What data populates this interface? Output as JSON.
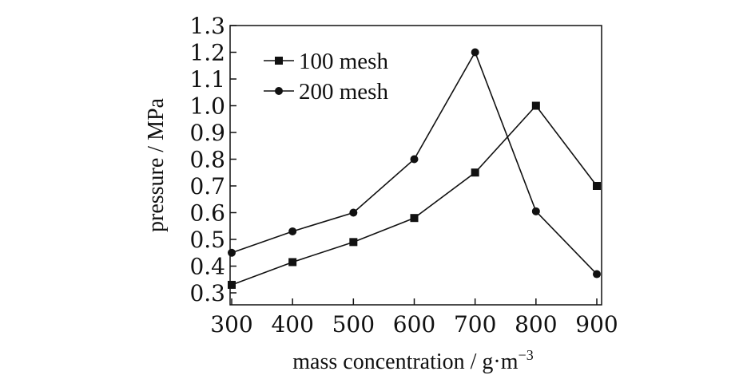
{
  "chart_data": {
    "type": "line",
    "title": "",
    "xlabel": "mass concentration / g·m",
    "xlabel_superscript": "−3",
    "ylabel": "pressure / MPa",
    "x": [
      300,
      400,
      500,
      600,
      700,
      800,
      900
    ],
    "x_tick_labels": [
      "300",
      "400",
      "500",
      "600",
      "700",
      "800",
      "900"
    ],
    "y_tick_labels": [
      "0.3",
      "0.4",
      "0.5",
      "0.6",
      "0.7",
      "0.8",
      "0.9",
      "1.0",
      "1.1",
      "1.2",
      "1.3"
    ],
    "xlim": [
      300,
      900
    ],
    "ylim": [
      0.25,
      1.3
    ],
    "grid": false,
    "legend_position": "top-left",
    "series": [
      {
        "name": "100 mesh",
        "marker": "square",
        "color": "#111111",
        "values": [
          0.33,
          0.415,
          0.49,
          0.58,
          0.75,
          1.0,
          0.7
        ]
      },
      {
        "name": "200 mesh",
        "marker": "circle",
        "color": "#111111",
        "values": [
          0.45,
          0.53,
          0.6,
          0.8,
          1.2,
          0.605,
          0.37
        ]
      }
    ]
  }
}
